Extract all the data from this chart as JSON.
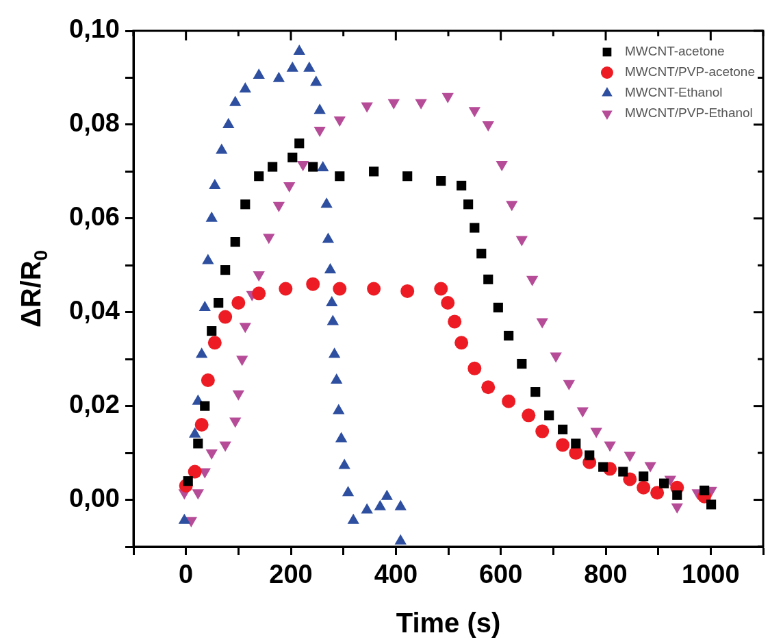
{
  "chart_data": {
    "type": "scatter",
    "xlabel": "Time (s)",
    "ylabel": "ΔR/R$_{0}$",
    "xlim": [
      -100,
      1100
    ],
    "xticks": [
      {
        "value": -100,
        "label": null
      },
      0,
      {
        "value": 100,
        "label": null
      },
      200,
      {
        "value": 300,
        "label": null
      },
      400,
      {
        "value": 500,
        "label": null
      },
      600,
      {
        "value": 700,
        "label": null
      },
      800,
      {
        "value": 900,
        "label": null
      },
      1000,
      {
        "value": 1100,
        "label": null
      }
    ],
    "ylim": [
      -0.01,
      0.1
    ],
    "yticks": [
      {
        "value": -0.01,
        "label": null
      },
      {
        "value": 0,
        "label": "0,00"
      },
      {
        "value": 0.01,
        "label": null
      },
      {
        "value": 0.02,
        "label": "0,02"
      },
      {
        "value": 0.03,
        "label": null
      },
      {
        "value": 0.04,
        "label": "0,04"
      },
      {
        "value": 0.05,
        "label": null
      },
      {
        "value": 0.06,
        "label": "0,06"
      },
      {
        "value": 0.07,
        "label": null
      },
      {
        "value": 0.08,
        "label": "0,08"
      },
      {
        "value": 0.09,
        "label": null
      },
      {
        "value": 0.1,
        "label": "0,10"
      }
    ],
    "grid": false,
    "legend": "top right",
    "series": [
      {
        "name": "MWCNT-acetone",
        "color": "#000000",
        "marker": "square",
        "x": [
          4,
          23,
          36,
          49,
          62,
          75,
          94,
          113,
          139,
          165,
          203,
          216,
          242,
          293,
          358,
          422,
          486,
          525,
          538,
          550,
          563,
          576,
          595,
          615,
          640,
          666,
          692,
          718,
          743,
          769,
          795,
          833,
          872,
          911,
          936,
          988,
          1001
        ],
        "values": [
          0.004,
          0.012,
          0.02,
          0.036,
          0.042,
          0.049,
          0.055,
          0.063,
          0.069,
          0.071,
          0.073,
          0.076,
          0.071,
          0.069,
          0.07,
          0.069,
          0.068,
          0.067,
          0.063,
          0.058,
          0.0525,
          0.047,
          0.041,
          0.035,
          0.029,
          0.023,
          0.018,
          0.015,
          0.012,
          0.0095,
          0.007,
          0.006,
          0.005,
          0.0035,
          0.001,
          0.002,
          -0.001
        ]
      },
      {
        "name": "MWCNT/PVP-acetone",
        "color": "#ed1c24",
        "marker": "circle",
        "x": [
          0,
          17,
          30,
          42,
          55,
          75,
          100,
          139,
          190,
          242,
          293,
          358,
          422,
          486,
          499,
          512,
          525,
          550,
          576,
          615,
          653,
          679,
          718,
          743,
          769,
          808,
          846,
          872,
          898,
          936,
          988
        ],
        "values": [
          0.003,
          0.006,
          0.016,
          0.0255,
          0.0335,
          0.039,
          0.042,
          0.044,
          0.045,
          0.046,
          0.045,
          0.045,
          0.0445,
          0.045,
          0.042,
          0.038,
          0.0335,
          0.028,
          0.024,
          0.021,
          0.018,
          0.0146,
          0.0117,
          0.01,
          0.008,
          0.0066,
          0.0044,
          0.0026,
          0.0015,
          0.0026,
          0.0007
        ]
      },
      {
        "name": "MWCNT-Ethanol",
        "color": "#2e4fa0",
        "marker": "triangle",
        "x": [
          -3,
          10,
          17,
          23,
          30,
          36,
          42,
          49,
          55,
          68,
          81,
          94,
          113,
          139,
          177,
          203,
          216,
          235,
          248,
          255,
          261,
          268,
          271,
          275,
          278,
          280,
          283,
          287,
          291,
          296,
          302,
          309,
          319,
          345,
          370,
          383,
          409,
          409
        ],
        "values": [
          -0.0044,
          null,
          0.014,
          0.021,
          0.031,
          0.041,
          0.051,
          0.06,
          0.067,
          0.0745,
          0.08,
          0.0847,
          0.0876,
          0.0905,
          0.0898,
          0.092,
          0.0956,
          0.092,
          0.089,
          0.083,
          0.0708,
          0.063,
          0.0555,
          0.049,
          0.042,
          0.038,
          0.031,
          0.0255,
          0.019,
          0.013,
          0.0073,
          0.0015,
          -0.0044,
          -0.0022,
          -0.0015,
          0.0007,
          -0.0015,
          -0.0088
        ]
      },
      {
        "name": "MWCNT/PVP-Ethanol",
        "color": "#b64b98",
        "marker": "triangle_down",
        "x": [
          -3,
          10,
          23,
          36,
          49,
          75,
          94,
          100,
          107,
          113,
          126,
          139,
          158,
          177,
          197,
          223,
          255,
          293,
          345,
          396,
          448,
          499,
          550,
          576,
          602,
          621,
          640,
          660,
          679,
          705,
          730,
          756,
          782,
          808,
          846,
          885,
          923,
          936,
          975,
          1001
        ],
        "values": [
          0.0015,
          -0.0044,
          0.0015,
          0.006,
          0.01,
          0.0117,
          0.0168,
          0.0226,
          0.03,
          0.037,
          0.0438,
          0.048,
          0.056,
          0.0628,
          0.067,
          0.0715,
          0.0788,
          0.081,
          0.084,
          0.0847,
          0.0847,
          0.086,
          0.083,
          0.08,
          0.0715,
          0.063,
          0.0555,
          0.047,
          0.038,
          0.0307,
          0.0248,
          0.019,
          0.0146,
          0.0117,
          0.0095,
          0.0073,
          0.0044,
          -0.0015,
          0.0015,
          0.002
        ]
      }
    ]
  }
}
